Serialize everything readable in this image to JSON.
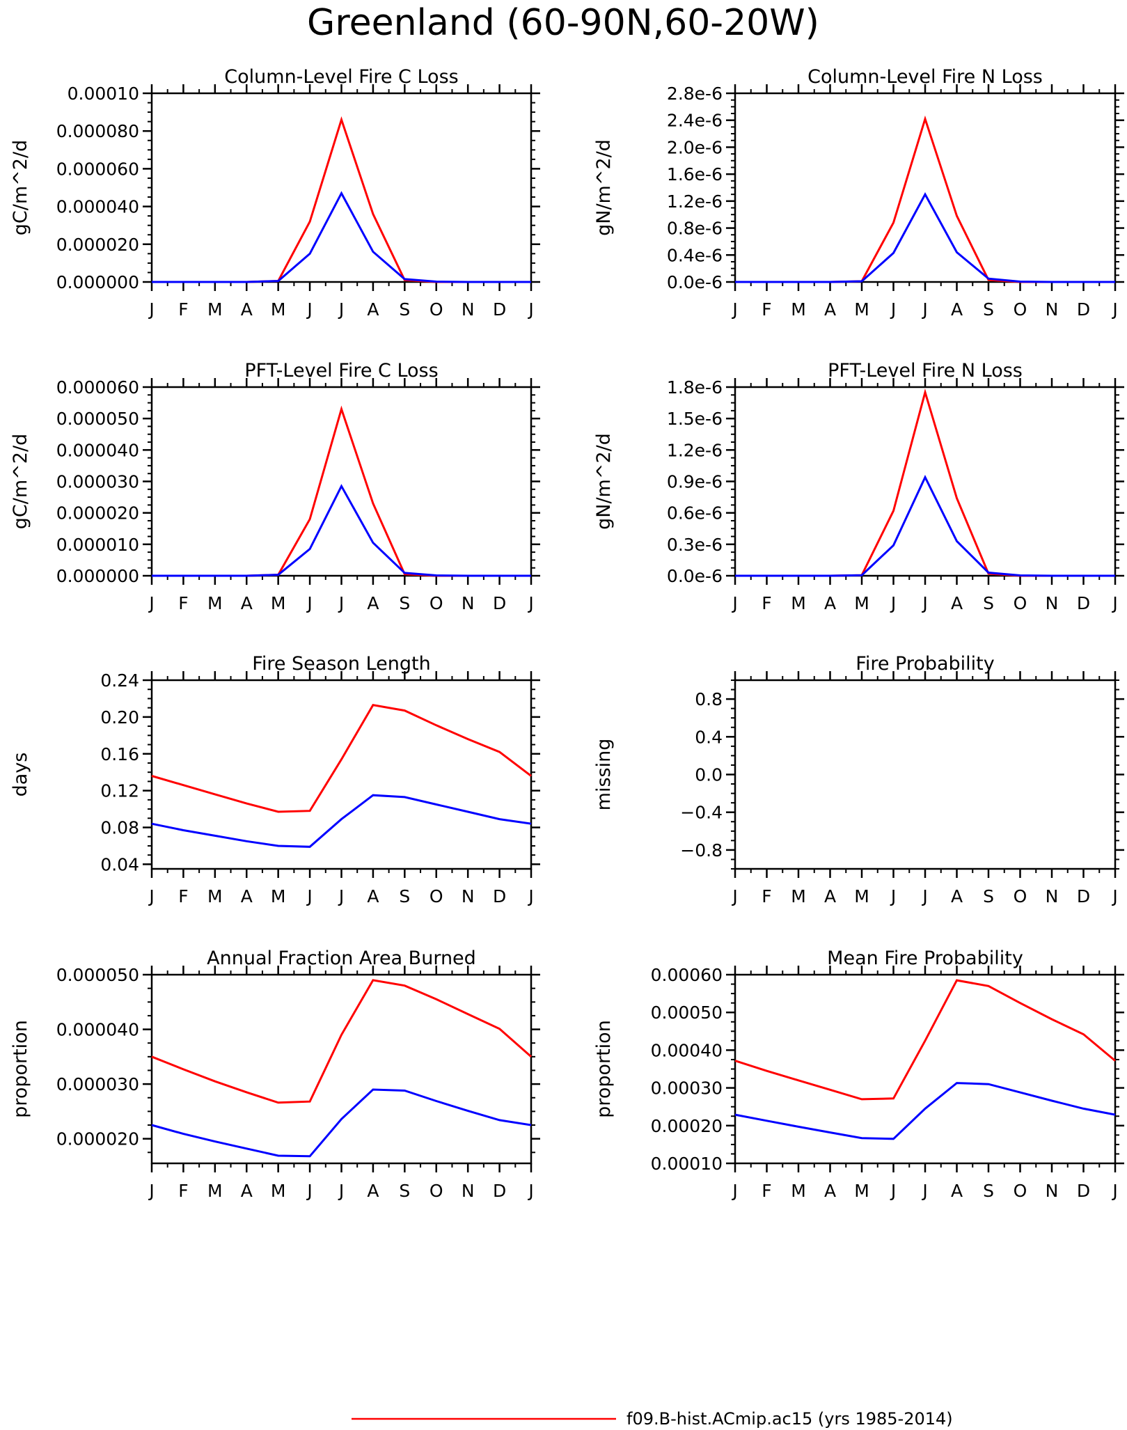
{
  "figure": {
    "title": "Greenland (60-90N,60-20W)",
    "month_labels": [
      "J",
      "F",
      "M",
      "A",
      "M",
      "J",
      "J",
      "A",
      "S",
      "O",
      "N",
      "D",
      "J"
    ],
    "legend": [
      {
        "label": "f09.B-hist.ACmip.ac15 (yrs 1985-2014)",
        "color": "#ff0000"
      }
    ],
    "series_colors": [
      "#ff0000",
      "#0000ff"
    ]
  },
  "chart_data": [
    {
      "type": "line",
      "title": "Column-Level Fire C Loss",
      "ylabel": "gC/m^2/d",
      "x": [
        "J",
        "F",
        "M",
        "A",
        "M",
        "J",
        "J",
        "A",
        "S",
        "O",
        "N",
        "D",
        "J"
      ],
      "ylim": [
        0,
        0.0001
      ],
      "yticks": [
        "0.000000",
        "0.000020",
        "0.000040",
        "0.000060",
        "0.000080",
        "0.00010"
      ],
      "yticks_values": [
        0,
        2e-05,
        4e-05,
        6e-05,
        8e-05,
        0.0001
      ],
      "series": [
        {
          "values": [
            0,
            0,
            0,
            0,
            5e-07,
            3.2e-05,
            8.6e-05,
            3.6e-05,
            1e-06,
            0,
            0,
            0,
            0
          ]
        },
        {
          "values": [
            0,
            0,
            0,
            0,
            5e-07,
            1.5e-05,
            4.7e-05,
            1.6e-05,
            1.5e-06,
            2e-07,
            0,
            0,
            0
          ]
        }
      ]
    },
    {
      "type": "line",
      "title": "Column-Level Fire N Loss",
      "ylabel": "gN/m^2/d",
      "x": [
        "J",
        "F",
        "M",
        "A",
        "M",
        "J",
        "J",
        "A",
        "S",
        "O",
        "N",
        "D",
        "J"
      ],
      "ylim": [
        0,
        2.8e-06
      ],
      "yticks": [
        "0.0e-6",
        "0.4e-6",
        "0.8e-6",
        "1.2e-6",
        "1.6e-6",
        "2.0e-6",
        "2.4e-6",
        "2.8e-6"
      ],
      "yticks_values": [
        0,
        4e-07,
        8e-07,
        1.2e-06,
        1.6e-06,
        2e-06,
        2.4e-06,
        2.8e-06
      ],
      "series": [
        {
          "values": [
            0,
            0,
            0,
            0,
            1e-08,
            8.8e-07,
            2.42e-06,
            9.8e-07,
            3e-08,
            0,
            0,
            0,
            0
          ]
        },
        {
          "values": [
            0,
            0,
            0,
            0,
            1e-08,
            4.3e-07,
            1.3e-06,
            4.4e-07,
            5e-08,
            5e-09,
            0,
            0,
            0
          ]
        }
      ]
    },
    {
      "type": "line",
      "title": "PFT-Level Fire C Loss",
      "ylabel": "gC/m^2/d",
      "x": [
        "J",
        "F",
        "M",
        "A",
        "M",
        "J",
        "J",
        "A",
        "S",
        "O",
        "N",
        "D",
        "J"
      ],
      "ylim": [
        0,
        6e-05
      ],
      "yticks": [
        "0.000000",
        "0.000010",
        "0.000020",
        "0.000030",
        "0.000040",
        "0.000050",
        "0.000060"
      ],
      "yticks_values": [
        0,
        1e-05,
        2e-05,
        3e-05,
        4e-05,
        5e-05,
        6e-05
      ],
      "series": [
        {
          "values": [
            0,
            0,
            0,
            0,
            3e-07,
            1.8e-05,
            5.3e-05,
            2.3e-05,
            5e-07,
            0,
            0,
            0,
            0
          ]
        },
        {
          "values": [
            0,
            0,
            0,
            0,
            3e-07,
            8.5e-06,
            2.85e-05,
            1.05e-05,
            9e-07,
            1e-07,
            0,
            0,
            0
          ]
        }
      ]
    },
    {
      "type": "line",
      "title": "PFT-Level Fire N Loss",
      "ylabel": "gN/m^2/d",
      "x": [
        "J",
        "F",
        "M",
        "A",
        "M",
        "J",
        "J",
        "A",
        "S",
        "O",
        "N",
        "D",
        "J"
      ],
      "ylim": [
        0,
        1.8e-06
      ],
      "yticks": [
        "0.0e-6",
        "0.3e-6",
        "0.6e-6",
        "0.9e-6",
        "1.2e-6",
        "1.5e-6",
        "1.8e-6"
      ],
      "yticks_values": [
        0,
        3e-07,
        6e-07,
        9e-07,
        1.2e-06,
        1.5e-06,
        1.8e-06
      ],
      "series": [
        {
          "values": [
            0,
            0,
            0,
            0,
            5e-09,
            6.2e-07,
            1.75e-06,
            7.4e-07,
            2e-08,
            0,
            0,
            0,
            0
          ]
        },
        {
          "values": [
            0,
            0,
            0,
            0,
            5e-09,
            2.9e-07,
            9.4e-07,
            3.3e-07,
            3e-08,
            3e-09,
            0,
            0,
            0
          ]
        }
      ]
    },
    {
      "type": "line",
      "title": "Fire Season Length",
      "ylabel": "days",
      "x": [
        "J",
        "F",
        "M",
        "A",
        "M",
        "J",
        "J",
        "A",
        "S",
        "O",
        "N",
        "D",
        "J"
      ],
      "ylim": [
        0.035,
        0.24
      ],
      "yticks": [
        "0.04",
        "0.08",
        "0.12",
        "0.16",
        "0.20",
        "0.24"
      ],
      "yticks_values": [
        0.04,
        0.08,
        0.12,
        0.16,
        0.2,
        0.24
      ],
      "series": [
        {
          "values": [
            0.136,
            0.126,
            0.116,
            0.106,
            0.097,
            0.098,
            0.154,
            0.213,
            0.207,
            0.191,
            0.176,
            0.162,
            0.136
          ]
        },
        {
          "values": [
            0.084,
            0.077,
            0.071,
            0.065,
            0.06,
            0.059,
            0.089,
            0.115,
            0.113,
            0.105,
            0.097,
            0.089,
            0.084
          ]
        }
      ]
    },
    {
      "type": "line",
      "title": "Fire Probability",
      "ylabel": "missing",
      "x": [
        "J",
        "F",
        "M",
        "A",
        "M",
        "J",
        "J",
        "A",
        "S",
        "O",
        "N",
        "D",
        "J"
      ],
      "ylim": [
        -1.0,
        1.0
      ],
      "yticks": [
        "−0.8",
        "−0.4",
        "0.0",
        "0.4",
        "0.8"
      ],
      "yticks_values": [
        -0.8,
        -0.4,
        0.0,
        0.4,
        0.8
      ],
      "series": []
    },
    {
      "type": "line",
      "title": "Annual Fraction Area Burned",
      "ylabel": "proportion",
      "x": [
        "J",
        "F",
        "M",
        "A",
        "M",
        "J",
        "J",
        "A",
        "S",
        "O",
        "N",
        "D",
        "J"
      ],
      "ylim": [
        1.55e-05,
        5e-05
      ],
      "yticks": [
        "0.000020",
        "0.000030",
        "0.000040",
        "0.000050"
      ],
      "yticks_values": [
        2e-05,
        3e-05,
        4e-05,
        5e-05
      ],
      "series": [
        {
          "values": [
            3.5e-05,
            3.27e-05,
            3.05e-05,
            2.85e-05,
            2.66e-05,
            2.68e-05,
            3.9e-05,
            4.9e-05,
            4.8e-05,
            4.55e-05,
            4.28e-05,
            4.01e-05,
            3.5e-05
          ]
        },
        {
          "values": [
            2.25e-05,
            2.09e-05,
            1.95e-05,
            1.82e-05,
            1.69e-05,
            1.68e-05,
            2.36e-05,
            2.9e-05,
            2.88e-05,
            2.69e-05,
            2.51e-05,
            2.34e-05,
            2.25e-05
          ]
        }
      ]
    },
    {
      "type": "line",
      "title": "Mean Fire Probability",
      "ylabel": "proportion",
      "x": [
        "J",
        "F",
        "M",
        "A",
        "M",
        "J",
        "J",
        "A",
        "S",
        "O",
        "N",
        "D",
        "J"
      ],
      "ylim": [
        0.0001,
        0.0006
      ],
      "yticks": [
        "0.00010",
        "0.00020",
        "0.00030",
        "0.00040",
        "0.00050",
        "0.00060"
      ],
      "yticks_values": [
        0.0001,
        0.0002,
        0.0003,
        0.0004,
        0.0005,
        0.0006
      ],
      "series": [
        {
          "values": [
            0.000372,
            0.000345,
            0.00032,
            0.000295,
            0.00027,
            0.000272,
            0.000425,
            0.000585,
            0.00057,
            0.000525,
            0.000482,
            0.000442,
            0.000372
          ]
        },
        {
          "values": [
            0.000229,
            0.000213,
            0.000197,
            0.000182,
            0.000167,
            0.000165,
            0.000245,
            0.000313,
            0.00031,
            0.000288,
            0.000266,
            0.000245,
            0.000229
          ]
        }
      ]
    }
  ]
}
